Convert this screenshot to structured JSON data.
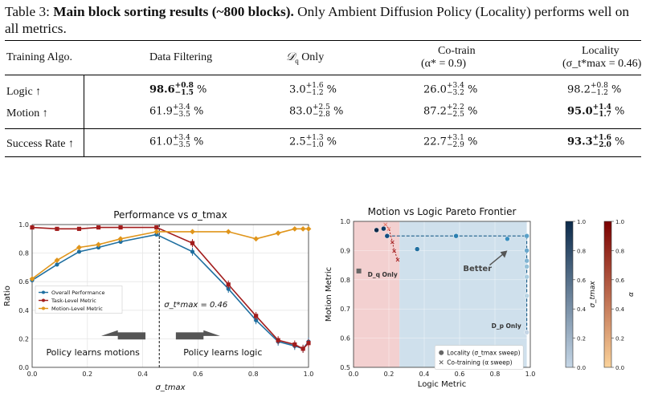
{
  "caption": {
    "label": "Table 3:",
    "bold": "Main block sorting results (~800 blocks).",
    "rest": " Only Ambient Diffusion Policy (Locality) performs well on all metrics."
  },
  "table": {
    "headers": [
      "Training Algo.",
      "Data Filtering",
      "D_q Only",
      "Co-train",
      "(α* = 0.9)",
      "Locality",
      "(σ_t*max = 0.46)"
    ],
    "rows": [
      {
        "label": "Logic ↑",
        "cells": [
          {
            "v": "98.6",
            "up": "+0.8",
            "dn": "−1.5",
            "bold": true
          },
          {
            "v": "3.0",
            "up": "+1.6",
            "dn": "−1.2",
            "bold": false
          },
          {
            "v": "26.0",
            "up": "+3.4",
            "dn": "−3.2",
            "bold": false
          },
          {
            "v": "98.2",
            "up": "+0.8",
            "dn": "−1.2",
            "bold": false
          }
        ]
      },
      {
        "label": "Motion ↑",
        "cells": [
          {
            "v": "61.9",
            "up": "+3.4",
            "dn": "−3.5",
            "bold": false
          },
          {
            "v": "83.0",
            "up": "+2.5",
            "dn": "−2.8",
            "bold": false
          },
          {
            "v": "87.2",
            "up": "+2.2",
            "dn": "−2.5",
            "bold": false
          },
          {
            "v": "95.0",
            "up": "+1.4",
            "dn": "−1.7",
            "bold": true
          }
        ]
      },
      {
        "label": "Success Rate ↑",
        "cells": [
          {
            "v": "61.0",
            "up": "+3.4",
            "dn": "−3.5",
            "bold": false
          },
          {
            "v": "2.5",
            "up": "+1.3",
            "dn": "−1.0",
            "bold": false
          },
          {
            "v": "22.7",
            "up": "+3.1",
            "dn": "−2.9",
            "bold": false
          },
          {
            "v": "93.3",
            "up": "+1.6",
            "dn": "−2.0",
            "bold": true
          }
        ]
      }
    ],
    "unit": "%"
  },
  "chart_data": [
    {
      "type": "line",
      "title": "Performance vs σ_tmax",
      "xlabel": "σ_tmax",
      "ylabel": "Ratio",
      "xlim": [
        0.0,
        1.0
      ],
      "ylim": [
        0.0,
        1.0
      ],
      "xticks": [
        "0.0",
        "0.2",
        "0.4",
        "0.6",
        "0.8",
        "1.0"
      ],
      "yticks": [
        "0.0",
        "0.2",
        "0.4",
        "0.6",
        "0.8",
        "1.0"
      ],
      "legend_position": "middle-left",
      "annotation": "σ_t*max = 0.46",
      "vline_x": 0.46,
      "left_text": "Policy learns motions",
      "right_text": "Policy learns logic",
      "series": [
        {
          "name": "Overall Performance",
          "color": "#1f6fa0",
          "marker": "circle",
          "x": [
            0.0,
            0.09,
            0.17,
            0.24,
            0.32,
            0.45,
            0.58,
            0.71,
            0.81,
            0.89,
            0.95,
            0.98,
            1.0
          ],
          "y": [
            0.61,
            0.72,
            0.81,
            0.84,
            0.88,
            0.93,
            0.81,
            0.55,
            0.33,
            0.18,
            0.15,
            0.13,
            0.18
          ]
        },
        {
          "name": "Task-Level Metric",
          "color": "#a21d1d",
          "marker": "square",
          "x": [
            0.0,
            0.09,
            0.17,
            0.24,
            0.32,
            0.45,
            0.58,
            0.71,
            0.81,
            0.89,
            0.95,
            0.98,
            1.0
          ],
          "y": [
            0.98,
            0.97,
            0.97,
            0.98,
            0.98,
            0.98,
            0.87,
            0.58,
            0.36,
            0.19,
            0.16,
            0.13,
            0.17
          ]
        },
        {
          "name": "Motion-Level Metric",
          "color": "#e0951b",
          "marker": "diamond",
          "x": [
            0.0,
            0.09,
            0.17,
            0.24,
            0.32,
            0.45,
            0.58,
            0.71,
            0.81,
            0.89,
            0.95,
            0.98,
            1.0
          ],
          "y": [
            0.62,
            0.75,
            0.84,
            0.86,
            0.9,
            0.95,
            0.95,
            0.95,
            0.9,
            0.94,
            0.97,
            0.97,
            0.97
          ]
        }
      ]
    },
    {
      "type": "scatter",
      "title": "Motion vs Logic Pareto Frontier",
      "xlabel": "Logic Metric",
      "ylabel": "Motion Metric",
      "xlim": [
        0.0,
        1.0
      ],
      "ylim": [
        0.5,
        1.0
      ],
      "xticks": [
        "0.0",
        "0.2",
        "0.4",
        "0.6",
        "0.8",
        "1.0"
      ],
      "yticks": [
        "0.5",
        "0.6",
        "0.7",
        "0.8",
        "0.9",
        "1.0"
      ],
      "legend_position": "bottom-right",
      "annotations": [
        "D_q Only",
        "D_p Only",
        "Better"
      ],
      "locality": {
        "name": "Locality (σ_tmax sweep)",
        "color": "#1f6fa0",
        "x": [
          0.13,
          0.17,
          0.19,
          0.36,
          0.58,
          0.87,
          0.98,
          0.98,
          0.98,
          0.98,
          0.98,
          0.98,
          0.98
        ],
        "y": [
          0.97,
          0.975,
          0.95,
          0.905,
          0.95,
          0.94,
          0.95,
          0.9,
          0.865,
          0.845,
          0.81,
          0.745,
          0.62
        ]
      },
      "cotrain": {
        "name": "Co-training (α sweep)",
        "color": "#c0392b",
        "x": [
          0.18,
          0.2,
          0.22,
          0.23,
          0.25
        ],
        "y": [
          0.99,
          0.975,
          0.93,
          0.9,
          0.87
        ]
      },
      "dq_only": {
        "x": 0.03,
        "y": 0.83
      },
      "colorbars": [
        {
          "label": "σ_tmax",
          "ticks": [
            "0.0",
            "0.2",
            "0.4",
            "0.6",
            "0.8",
            "1.0"
          ],
          "low": "#c5d6e6",
          "high": "#0b2a4a"
        },
        {
          "label": "α",
          "ticks": [
            "0.0",
            "0.2",
            "0.4",
            "0.6",
            "0.8",
            "1.0"
          ],
          "low": "#fbd39b",
          "high": "#7a0000"
        }
      ]
    }
  ]
}
